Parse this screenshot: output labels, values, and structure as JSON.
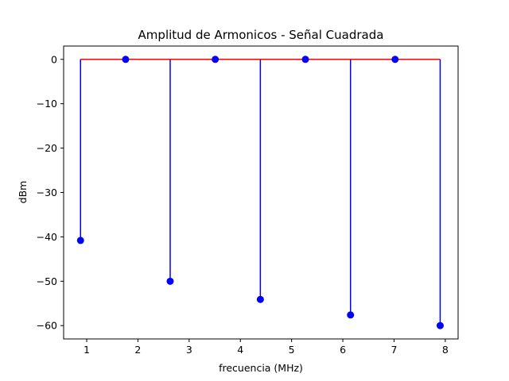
{
  "chart_data": {
    "type": "stem",
    "title": "Amplitud de Armonicos - Señal Cuadrada",
    "xlabel": "frecuencia (MHz)",
    "ylabel": "dBm",
    "xlim": [
      0.55,
      8.25
    ],
    "ylim": [
      -63,
      3
    ],
    "xticks": [
      1,
      2,
      3,
      4,
      5,
      6,
      7,
      8
    ],
    "yticks": [
      0,
      -10,
      -20,
      -30,
      -40,
      -50,
      -60
    ],
    "xtick_labels": [
      "1",
      "2",
      "3",
      "4",
      "5",
      "6",
      "7",
      "8"
    ],
    "ytick_labels": [
      "0",
      "−10",
      "−20",
      "−30",
      "−40",
      "−50",
      "−60"
    ],
    "baseline": 0,
    "x": [
      0.88,
      1.76,
      2.63,
      3.51,
      4.39,
      5.27,
      6.15,
      7.02,
      7.9
    ],
    "values": [
      -40.8,
      0,
      -50,
      0,
      -54.1,
      0,
      -57.6,
      0,
      -60
    ],
    "grid": false,
    "colors": {
      "stem": "#0000ff",
      "marker": "#0000ff",
      "baseline": "#ff0000"
    }
  }
}
